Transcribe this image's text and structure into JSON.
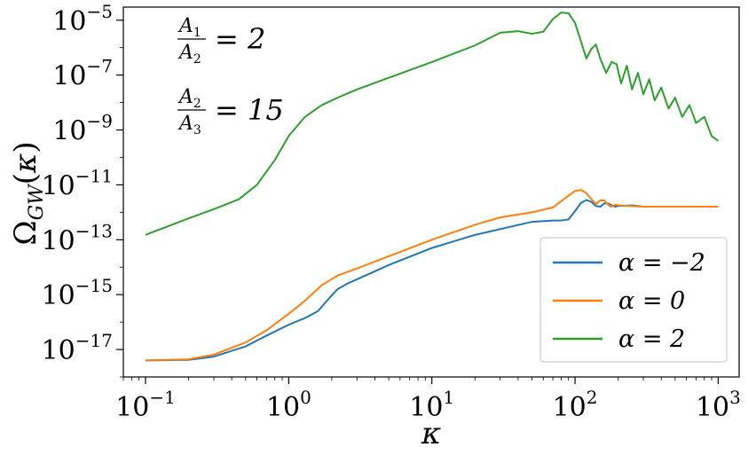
{
  "chart_data": {
    "type": "line",
    "xscale": "log",
    "yscale": "log",
    "xlim": [
      0.07,
      1400
    ],
    "ylim": [
      1e-18,
      3e-05
    ],
    "xlabel": "κ",
    "ylabel": "Ω_GW(κ)",
    "xticks": [
      {
        "base": "10",
        "exp": "−1",
        "value": 0.1
      },
      {
        "base": "10",
        "exp": "0",
        "value": 1
      },
      {
        "base": "10",
        "exp": "1",
        "value": 10
      },
      {
        "base": "10",
        "exp": "2",
        "value": 100
      },
      {
        "base": "10",
        "exp": "3",
        "value": 1000
      }
    ],
    "yticks": [
      {
        "base": "10",
        "exp": "−5",
        "value": 1e-05
      },
      {
        "base": "10",
        "exp": "−7",
        "value": 1e-07
      },
      {
        "base": "10",
        "exp": "−9",
        "value": 1e-09
      },
      {
        "base": "10",
        "exp": "−11",
        "value": 1e-11
      },
      {
        "base": "10",
        "exp": "−13",
        "value": 1e-13
      },
      {
        "base": "10",
        "exp": "−15",
        "value": 1e-15
      },
      {
        "base": "10",
        "exp": "−17",
        "value": 1e-17
      }
    ],
    "grid": false,
    "legend_position": "lower-right",
    "annotations": [
      {
        "num": "A",
        "num_sub": "1",
        "den": "A",
        "den_sub": "2",
        "rhs": "= 2"
      },
      {
        "num": "A",
        "num_sub": "2",
        "den": "A",
        "den_sub": "3",
        "rhs": "= 15"
      }
    ],
    "series": [
      {
        "name": "α = −2",
        "color": "#1f77b4",
        "x": [
          0.1,
          0.2,
          0.3,
          0.5,
          0.7,
          1.0,
          1.3,
          1.6,
          1.9,
          2.2,
          2.6,
          3.0,
          5,
          10,
          20,
          50,
          70,
          80,
          90,
          100,
          110,
          120,
          130,
          140,
          150,
          160,
          170,
          180,
          190,
          200,
          250,
          300,
          500,
          1000
        ],
        "y": [
          4e-18,
          4.2e-18,
          5.5e-18,
          1.3e-17,
          3.2e-17,
          8e-17,
          1.4e-16,
          2.5e-16,
          7e-16,
          1.6e-15,
          2.6e-15,
          3.6e-15,
          1.2e-14,
          5e-14,
          1.5e-13,
          4.5e-13,
          5e-13,
          5e-13,
          5.5e-13,
          1.1e-12,
          2.2e-12,
          2.8e-12,
          2.4e-12,
          1.7e-12,
          1.6e-12,
          2.1e-12,
          2.1e-12,
          1.8e-12,
          1.6e-12,
          1.7e-12,
          1.8e-12,
          1.6e-12,
          1.6e-12,
          1.6e-12
        ]
      },
      {
        "name": "α = 0",
        "color": "#ff7f0e",
        "x": [
          0.1,
          0.2,
          0.3,
          0.5,
          0.7,
          1.0,
          1.3,
          1.7,
          2.2,
          3.0,
          5,
          10,
          20,
          30,
          50,
          70,
          90,
          100,
          110,
          120,
          130,
          140,
          150,
          160,
          170,
          180,
          190,
          200,
          300,
          1000
        ],
        "y": [
          4e-18,
          4.4e-18,
          6.5e-18,
          1.8e-17,
          5e-17,
          2e-16,
          6e-16,
          2.2e-15,
          5e-15,
          9e-15,
          2.5e-14,
          1e-13,
          3.5e-13,
          6.5e-13,
          1e-12,
          1.5e-12,
          4e-12,
          6e-12,
          6.5e-12,
          5e-12,
          3e-12,
          2e-12,
          2.7e-12,
          2.7e-12,
          1.9e-12,
          1.6e-12,
          1.9e-12,
          1.8e-12,
          1.6e-12,
          1.6e-12
        ]
      },
      {
        "name": "α = 2",
        "color": "#2ca02c",
        "x": [
          0.1,
          0.2,
          0.3,
          0.45,
          0.6,
          0.8,
          1.0,
          1.3,
          1.7,
          2.2,
          3.0,
          5,
          10,
          20,
          30,
          40,
          50,
          60,
          70,
          80,
          90,
          100,
          110,
          120,
          130,
          140,
          150,
          165,
          180,
          195,
          210,
          230,
          250,
          275,
          300,
          330,
          360,
          400,
          450,
          500,
          560,
          630,
          700,
          800,
          900,
          1000
        ],
        "y": [
          1.5e-13,
          6e-13,
          1.3e-12,
          3e-12,
          1e-11,
          8e-11,
          6e-10,
          3e-09,
          8e-09,
          1.5e-08,
          3e-08,
          8e-08,
          3e-07,
          1.2e-06,
          3.5e-06,
          4e-06,
          3.2e-06,
          3.8e-06,
          1.1e-05,
          1.9e-05,
          1.8e-05,
          8e-06,
          1.7e-06,
          4e-07,
          9e-07,
          1.3e-06,
          4e-07,
          1.2e-07,
          3e-07,
          2.5e-07,
          5e-08,
          2.2e-07,
          3e-08,
          1.2e-07,
          2e-08,
          7e-08,
          1.2e-08,
          3.5e-08,
          6e-09,
          1.5e-08,
          3e-09,
          8e-09,
          1.8e-09,
          3e-09,
          6e-10,
          4e-10
        ]
      }
    ]
  }
}
